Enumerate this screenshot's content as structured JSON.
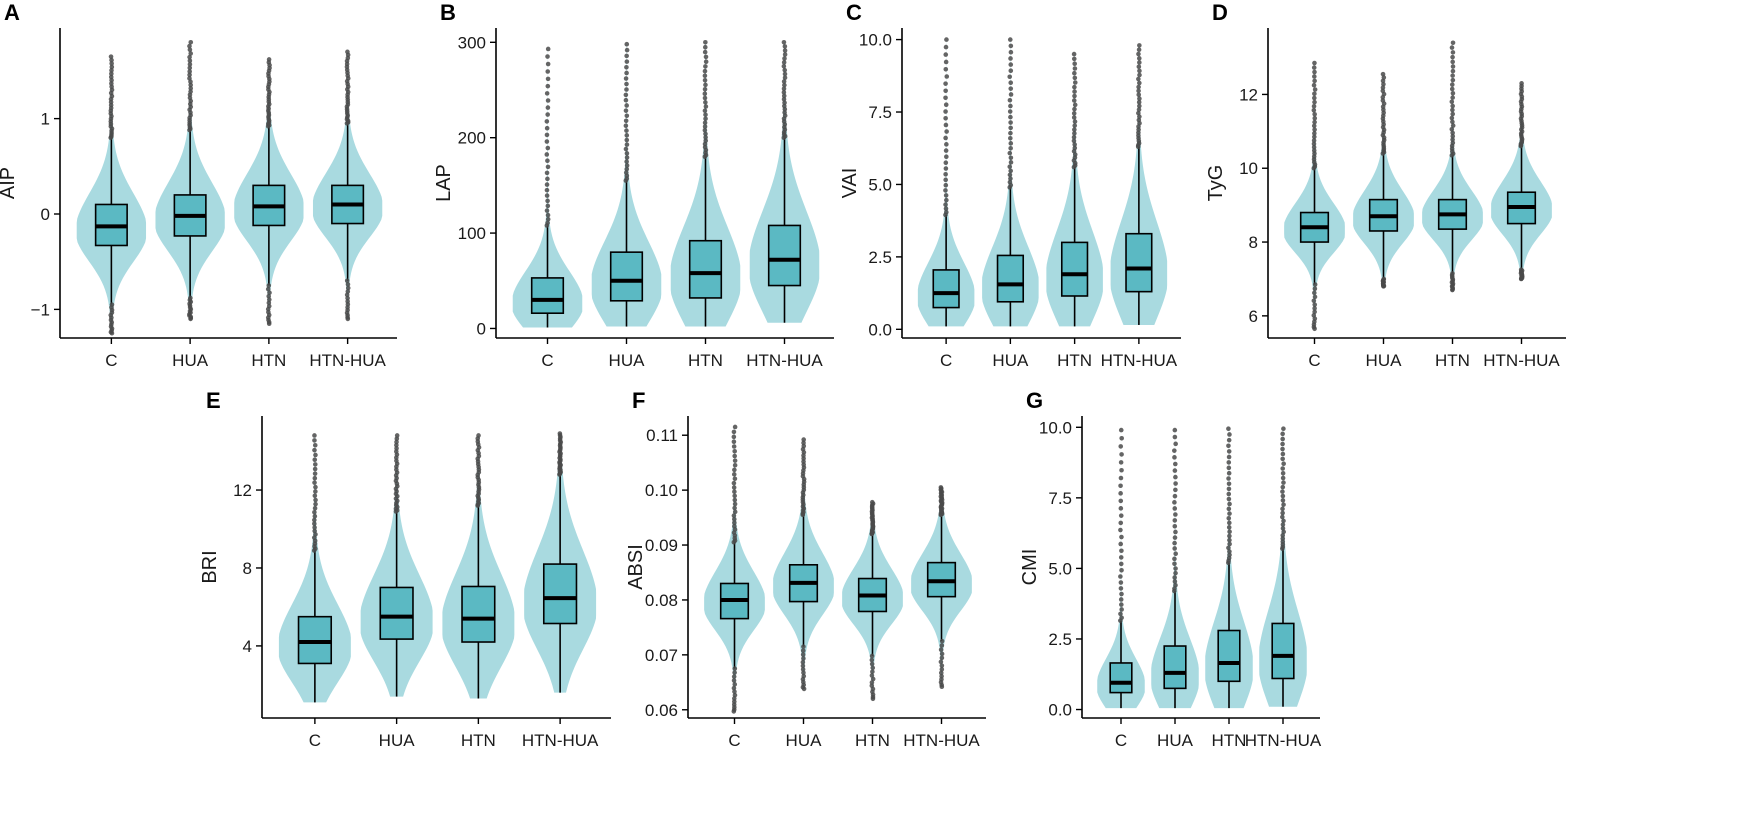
{
  "figure": {
    "title": ""
  },
  "colors": {
    "violin": "#a9dae0",
    "box": "#5bb9c3",
    "outline": "#000000",
    "outlier": "#4a4a4a",
    "axis": "#000000"
  },
  "chart_data": [
    {
      "panel": "A",
      "type": "violin-box",
      "ylabel": "AIP",
      "xlabel": "",
      "categories": [
        "C",
        "HUA",
        "HTN",
        "HTN-HUA"
      ],
      "ylim": [
        -1.3,
        1.95
      ],
      "yticks": [
        -1,
        0,
        1
      ],
      "ytick_labels": [
        "−1",
        "0",
        "1"
      ],
      "groups": [
        {
          "q1": -0.33,
          "median": -0.13,
          "q3": 0.1,
          "wlo": -0.95,
          "whi": 0.8,
          "min": -1.25,
          "max": 1.65
        },
        {
          "q1": -0.23,
          "median": -0.02,
          "q3": 0.2,
          "wlo": -0.88,
          "whi": 0.88,
          "min": -1.1,
          "max": 1.8
        },
        {
          "q1": -0.12,
          "median": 0.08,
          "q3": 0.3,
          "wlo": -0.75,
          "whi": 0.92,
          "min": -1.15,
          "max": 1.62
        },
        {
          "q1": -0.1,
          "median": 0.1,
          "q3": 0.3,
          "wlo": -0.7,
          "whi": 0.95,
          "min": -1.1,
          "max": 1.7
        }
      ]
    },
    {
      "panel": "B",
      "type": "violin-box",
      "ylabel": "LAP",
      "xlabel": "",
      "categories": [
        "C",
        "HUA",
        "HTN",
        "HTN-HUA"
      ],
      "ylim": [
        -10,
        315
      ],
      "yticks": [
        0,
        100,
        200,
        300
      ],
      "ytick_labels": [
        "0",
        "100",
        "200",
        "300"
      ],
      "groups": [
        {
          "q1": 16,
          "median": 30,
          "q3": 53,
          "wlo": 1,
          "whi": 108,
          "min": 1,
          "max": 293
        },
        {
          "q1": 29,
          "median": 50,
          "q3": 80,
          "wlo": 2,
          "whi": 155,
          "min": 2,
          "max": 298
        },
        {
          "q1": 32,
          "median": 58,
          "q3": 92,
          "wlo": 2,
          "whi": 180,
          "min": 2,
          "max": 300
        },
        {
          "q1": 45,
          "median": 72,
          "q3": 108,
          "wlo": 6,
          "whi": 200,
          "min": 6,
          "max": 300
        }
      ]
    },
    {
      "panel": "C",
      "type": "violin-box",
      "ylabel": "VAI",
      "xlabel": "",
      "categories": [
        "C",
        "HUA",
        "HTN",
        "HTN-HUA"
      ],
      "ylim": [
        -0.3,
        10.4
      ],
      "yticks": [
        0,
        2.5,
        5,
        7.5,
        10
      ],
      "ytick_labels": [
        "0.0",
        "2.5",
        "5.0",
        "7.5",
        "10.0"
      ],
      "groups": [
        {
          "q1": 0.75,
          "median": 1.25,
          "q3": 2.05,
          "wlo": 0.1,
          "whi": 3.95,
          "min": 0.1,
          "max": 10.0
        },
        {
          "q1": 0.95,
          "median": 1.55,
          "q3": 2.55,
          "wlo": 0.1,
          "whi": 4.9,
          "min": 0.1,
          "max": 10.0
        },
        {
          "q1": 1.15,
          "median": 1.9,
          "q3": 3.0,
          "wlo": 0.1,
          "whi": 5.6,
          "min": 0.1,
          "max": 9.5
        },
        {
          "q1": 1.3,
          "median": 2.1,
          "q3": 3.3,
          "wlo": 0.15,
          "whi": 6.3,
          "min": 0.15,
          "max": 9.8
        }
      ]
    },
    {
      "panel": "D",
      "type": "violin-box",
      "ylabel": "TyG",
      "xlabel": "",
      "categories": [
        "C",
        "HUA",
        "HTN",
        "HTN-HUA"
      ],
      "ylim": [
        5.4,
        13.8
      ],
      "yticks": [
        6,
        8,
        10,
        12
      ],
      "ytick_labels": [
        "6",
        "8",
        "10",
        "12"
      ],
      "groups": [
        {
          "q1": 8.0,
          "median": 8.4,
          "q3": 8.8,
          "wlo": 6.85,
          "whi": 10.0,
          "min": 5.65,
          "max": 12.85
        },
        {
          "q1": 8.3,
          "median": 8.7,
          "q3": 9.15,
          "wlo": 7.0,
          "whi": 10.4,
          "min": 6.8,
          "max": 12.55
        },
        {
          "q1": 8.35,
          "median": 8.75,
          "q3": 9.15,
          "wlo": 7.15,
          "whi": 10.35,
          "min": 6.7,
          "max": 13.4
        },
        {
          "q1": 8.5,
          "median": 8.95,
          "q3": 9.35,
          "wlo": 7.25,
          "whi": 10.6,
          "min": 7.0,
          "max": 12.3
        }
      ]
    },
    {
      "panel": "E",
      "type": "violin-box",
      "ylabel": "BRI",
      "xlabel": "",
      "categories": [
        "C",
        "HUA",
        "HTN",
        "HTN-HUA"
      ],
      "ylim": [
        0.3,
        15.8
      ],
      "yticks": [
        4,
        8,
        12
      ],
      "ytick_labels": [
        "4",
        "8",
        "12"
      ],
      "groups": [
        {
          "q1": 3.1,
          "median": 4.2,
          "q3": 5.5,
          "wlo": 1.1,
          "whi": 8.9,
          "min": 1.1,
          "max": 14.8
        },
        {
          "q1": 4.35,
          "median": 5.5,
          "q3": 7.0,
          "wlo": 1.4,
          "whi": 10.9,
          "min": 1.4,
          "max": 14.8
        },
        {
          "q1": 4.2,
          "median": 5.4,
          "q3": 7.05,
          "wlo": 1.3,
          "whi": 11.2,
          "min": 1.3,
          "max": 14.8
        },
        {
          "q1": 5.15,
          "median": 6.45,
          "q3": 8.2,
          "wlo": 1.6,
          "whi": 12.8,
          "min": 1.6,
          "max": 14.9
        }
      ]
    },
    {
      "panel": "F",
      "type": "violin-box",
      "ylabel": "ABSI",
      "xlabel": "",
      "categories": [
        "C",
        "HUA",
        "HTN",
        "HTN-HUA"
      ],
      "ylim": [
        0.0585,
        0.1135
      ],
      "yticks": [
        0.06,
        0.07,
        0.08,
        0.09,
        0.1,
        0.11
      ],
      "ytick_labels": [
        "0.06",
        "0.07",
        "0.08",
        "0.09",
        "0.10",
        "0.11"
      ],
      "groups": [
        {
          "q1": 0.0766,
          "median": 0.08,
          "q3": 0.083,
          "wlo": 0.0675,
          "whi": 0.0905,
          "min": 0.0597,
          "max": 0.1115
        },
        {
          "q1": 0.0797,
          "median": 0.0831,
          "q3": 0.0864,
          "wlo": 0.0715,
          "whi": 0.0955,
          "min": 0.0638,
          "max": 0.1092
        },
        {
          "q1": 0.0779,
          "median": 0.0808,
          "q3": 0.0839,
          "wlo": 0.0698,
          "whi": 0.092,
          "min": 0.062,
          "max": 0.0978
        },
        {
          "q1": 0.0806,
          "median": 0.0834,
          "q3": 0.0868,
          "wlo": 0.0725,
          "whi": 0.0955,
          "min": 0.0642,
          "max": 0.1005
        }
      ]
    },
    {
      "panel": "G",
      "type": "violin-box",
      "ylabel": "CMI",
      "xlabel": "",
      "categories": [
        "C",
        "HUA",
        "HTN",
        "HTN-HUA"
      ],
      "ylim": [
        -0.3,
        10.4
      ],
      "yticks": [
        0,
        2.5,
        5,
        7.5,
        10
      ],
      "ytick_labels": [
        "0.0",
        "2.5",
        "5.0",
        "7.5",
        "10.0"
      ],
      "groups": [
        {
          "q1": 0.6,
          "median": 0.95,
          "q3": 1.65,
          "wlo": 0.05,
          "whi": 3.15,
          "min": 0.05,
          "max": 9.9
        },
        {
          "q1": 0.75,
          "median": 1.3,
          "q3": 2.25,
          "wlo": 0.05,
          "whi": 4.2,
          "min": 0.05,
          "max": 9.9
        },
        {
          "q1": 1.0,
          "median": 1.65,
          "q3": 2.8,
          "wlo": 0.05,
          "whi": 5.2,
          "min": 0.05,
          "max": 9.95
        },
        {
          "q1": 1.1,
          "median": 1.9,
          "q3": 3.05,
          "wlo": 0.1,
          "whi": 5.7,
          "min": 0.1,
          "max": 9.95
        }
      ]
    }
  ]
}
